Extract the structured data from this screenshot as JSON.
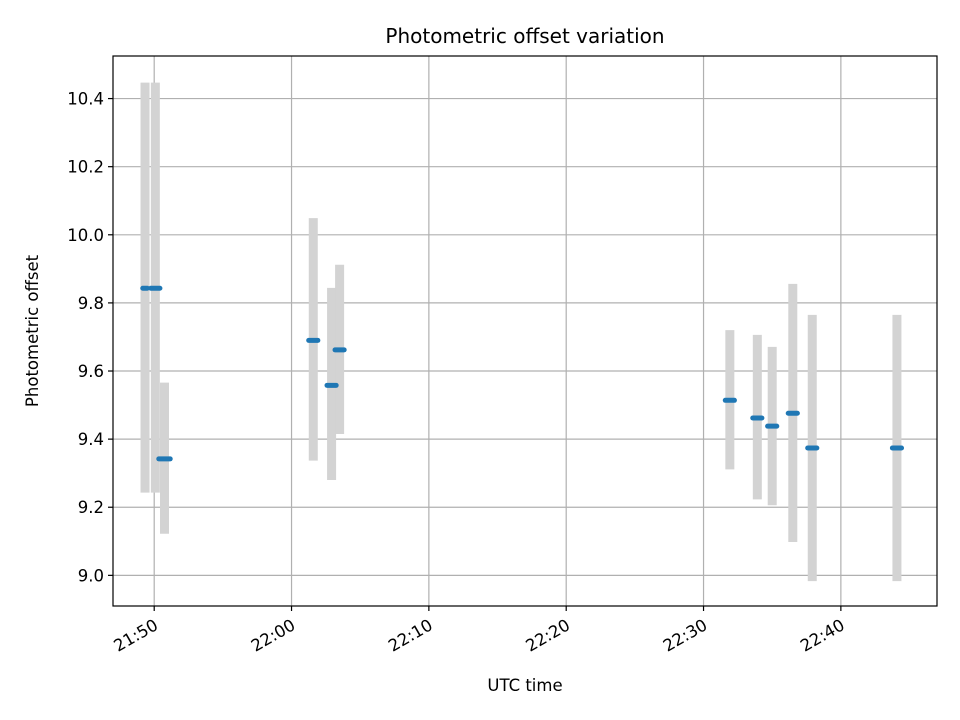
{
  "chart_data": {
    "type": "scatter",
    "title": "Photometric offset variation",
    "xlabel": "UTC time",
    "ylabel": "Photometric offset",
    "grid": true,
    "xlim": [
      "21:47",
      "22:47"
    ],
    "ylim": [
      8.91,
      10.525
    ],
    "x_ticks": [
      "21:50",
      "22:00",
      "22:10",
      "22:20",
      "22:30",
      "22:40"
    ],
    "y_ticks": [
      9.0,
      9.2,
      9.4,
      9.6,
      9.8,
      10.0,
      10.2,
      10.4
    ],
    "y_tick_labels": [
      "9.0",
      "9.2",
      "9.4",
      "9.6",
      "9.8",
      "10.0",
      "10.2",
      "10.4"
    ],
    "colors": {
      "points": "#1f77b4",
      "error_bars": "#d3d3d3",
      "grid": "#b0b0b0"
    },
    "points": [
      {
        "time": "21:49:20",
        "start": "21:49:10",
        "end": "21:49:30",
        "y": 9.843,
        "low": 9.243,
        "high": 10.447
      },
      {
        "time": "21:50:05",
        "start": "21:49:45",
        "end": "21:50:25",
        "y": 9.843,
        "low": 9.243,
        "high": 10.447
      },
      {
        "time": "21:50:45",
        "start": "21:50:20",
        "end": "21:51:10",
        "y": 9.342,
        "low": 9.122,
        "high": 9.566
      },
      {
        "time": "22:01:35",
        "start": "22:01:15",
        "end": "22:01:55",
        "y": 9.69,
        "low": 9.337,
        "high": 10.049
      },
      {
        "time": "22:02:55",
        "start": "22:02:35",
        "end": "22:03:15",
        "y": 9.558,
        "low": 9.28,
        "high": 9.844
      },
      {
        "time": "22:03:30",
        "start": "22:03:10",
        "end": "22:03:50",
        "y": 9.662,
        "low": 9.415,
        "high": 9.912
      },
      {
        "time": "22:31:55",
        "start": "22:31:35",
        "end": "22:32:15",
        "y": 9.514,
        "low": 9.311,
        "high": 9.72
      },
      {
        "time": "22:33:55",
        "start": "22:33:35",
        "end": "22:34:15",
        "y": 9.462,
        "low": 9.223,
        "high": 9.706
      },
      {
        "time": "22:35:00",
        "start": "22:34:40",
        "end": "22:35:20",
        "y": 9.438,
        "low": 9.206,
        "high": 9.671
      },
      {
        "time": "22:36:30",
        "start": "22:36:10",
        "end": "22:36:50",
        "y": 9.476,
        "low": 9.098,
        "high": 9.856
      },
      {
        "time": "22:37:55",
        "start": "22:37:35",
        "end": "22:38:15",
        "y": 9.374,
        "low": 8.983,
        "high": 9.765
      },
      {
        "time": "22:44:05",
        "start": "22:43:45",
        "end": "22:44:25",
        "y": 9.374,
        "low": 8.983,
        "high": 9.765
      }
    ]
  }
}
